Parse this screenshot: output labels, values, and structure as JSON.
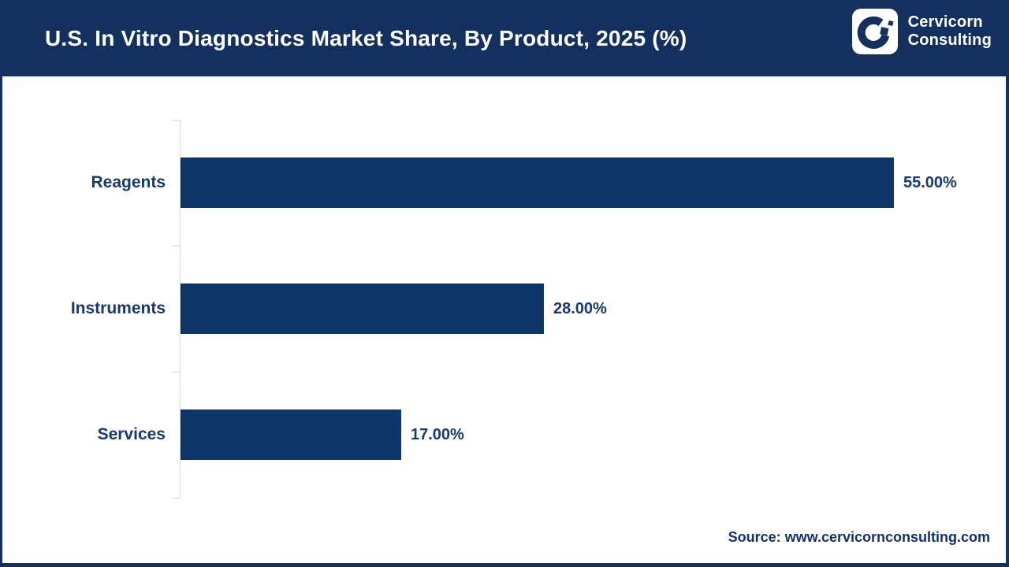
{
  "header": {
    "title": "U.S. In Vitro Diagnostics Market Share, By Product, 2025 (%)",
    "brand_line1": "Cervicorn",
    "brand_line2": "Consulting"
  },
  "chart_data": {
    "type": "bar",
    "orientation": "horizontal",
    "title": "U.S. In Vitro Diagnostics Market Share, By Product, 2025 (%)",
    "categories": [
      "Reagents",
      "Instruments",
      "Services"
    ],
    "values": [
      55.0,
      28.0,
      17.0
    ],
    "value_labels": [
      "55.00%",
      "28.00%",
      "17.00%"
    ],
    "xlabel": "",
    "ylabel": "",
    "xlim": [
      0,
      60
    ],
    "grid": false,
    "legend": false,
    "bar_color": "#0e3568",
    "label_color": "#17396d",
    "axis_color": "#d9d9d9"
  },
  "footer": {
    "source": "Source: www.cervicornconsulting.com"
  },
  "colors": {
    "header_bg": "#13305e",
    "frame_border": "#13305e",
    "title_text": "#ffffff",
    "logo_mark_bg": "#ffffff",
    "logo_glyph": "#13305e"
  }
}
